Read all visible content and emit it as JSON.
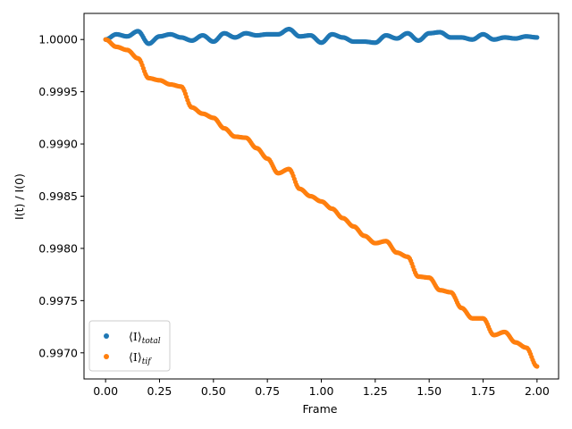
{
  "chart_data": {
    "type": "scatter",
    "xlabel": "Frame",
    "ylabel": "I(t) / I(0)",
    "xlim": [
      -0.1,
      2.1
    ],
    "ylim": [
      0.99675,
      1.00025
    ],
    "xticks": [
      0.0,
      0.25,
      0.5,
      0.75,
      1.0,
      1.25,
      1.5,
      1.75,
      2.0
    ],
    "xtick_labels": [
      "0.00",
      "0.25",
      "0.50",
      "0.75",
      "1.00",
      "1.25",
      "1.50",
      "1.75",
      "2.00"
    ],
    "yticks": [
      0.997,
      0.9975,
      0.998,
      0.9985,
      0.999,
      0.9995,
      1.0
    ],
    "ytick_labels": [
      "0.9970",
      "0.9975",
      "0.9980",
      "0.9985",
      "0.9990",
      "0.9995",
      "1.0000"
    ],
    "legend_position": "lower-left",
    "x": [
      0.0,
      0.05,
      0.1,
      0.15,
      0.2,
      0.25,
      0.3,
      0.35,
      0.4,
      0.45,
      0.5,
      0.55,
      0.6,
      0.65,
      0.7,
      0.75,
      0.8,
      0.85,
      0.9,
      0.95,
      1.0,
      1.05,
      1.1,
      1.15,
      1.2,
      1.25,
      1.3,
      1.35,
      1.4,
      1.45,
      1.5,
      1.55,
      1.6,
      1.65,
      1.7,
      1.75,
      1.8,
      1.85,
      1.9,
      1.95,
      2.0
    ],
    "series": [
      {
        "name_main": "⟨I⟩",
        "name_sub": "total",
        "color": "#1f77b4",
        "values": [
          1.0,
          1.00005,
          1.00003,
          1.00008,
          0.99996,
          1.00003,
          1.00005,
          1.00002,
          0.99999,
          1.00004,
          0.99998,
          1.00006,
          1.00002,
          1.00006,
          1.00004,
          1.00005,
          1.00005,
          1.0001,
          1.00003,
          1.00004,
          0.99997,
          1.00005,
          1.00002,
          0.99998,
          0.99998,
          0.99997,
          1.00004,
          1.00001,
          1.00006,
          0.99999,
          1.00006,
          1.00007,
          1.00002,
          1.00002,
          1.0,
          1.00005,
          1.0,
          1.00002,
          1.00001,
          1.00003,
          1.00002
        ]
      },
      {
        "name_main": "⟨I⟩",
        "name_sub": "tif",
        "color": "#ff7f0e",
        "values": [
          1.0,
          0.99993,
          0.9999,
          0.99982,
          0.99963,
          0.99961,
          0.99957,
          0.99955,
          0.99935,
          0.99929,
          0.99925,
          0.99915,
          0.99907,
          0.99906,
          0.99896,
          0.99886,
          0.99872,
          0.99876,
          0.99857,
          0.9985,
          0.99845,
          0.99838,
          0.99829,
          0.99821,
          0.99812,
          0.99805,
          0.99807,
          0.99796,
          0.99792,
          0.99773,
          0.99772,
          0.9976,
          0.99758,
          0.99743,
          0.99733,
          0.99733,
          0.99717,
          0.9972,
          0.9971,
          0.99705,
          0.99687
        ]
      }
    ]
  }
}
